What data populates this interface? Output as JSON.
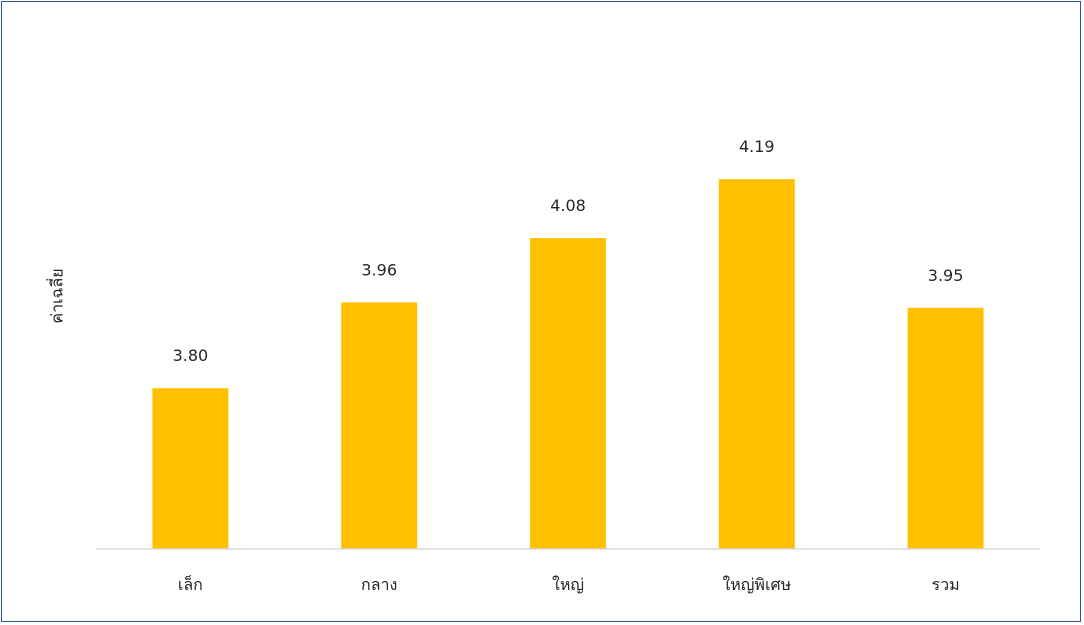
{
  "chart_data": {
    "type": "bar",
    "categories": [
      "เล็ก",
      "กลาง",
      "ใหญ่",
      "ใหญ่พิเศษ",
      "รวม"
    ],
    "values": [
      3.8,
      3.96,
      4.08,
      4.19,
      3.95
    ],
    "data_labels": [
      "3.80",
      "3.96",
      "4.08",
      "4.19",
      "3.95"
    ],
    "title": "",
    "xlabel": "",
    "ylabel": "ค่าเฉลี่ย",
    "ylim": [
      3.5,
      4.3
    ],
    "grid": false,
    "bar_color": "#ffc000",
    "axis_color": "#d9d9d9",
    "frame_color": "#2f5597"
  }
}
